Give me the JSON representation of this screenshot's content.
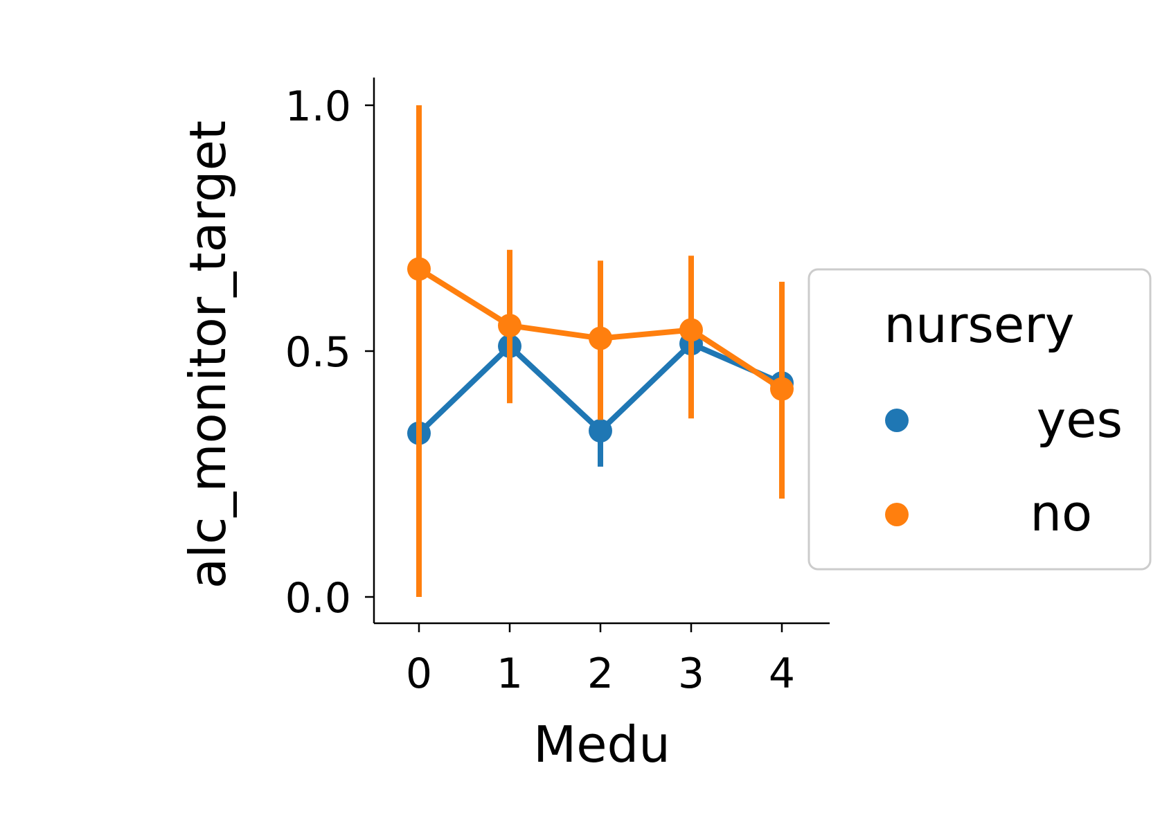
{
  "chart_data": {
    "type": "line",
    "title": "",
    "xlabel": "Medu",
    "ylabel": "alc_monitor_target",
    "categories": [
      "0",
      "1",
      "2",
      "3",
      "4"
    ],
    "ylim": [
      -0.05,
      1.05
    ],
    "yticks": [
      "0.0",
      "0.5",
      "1.0"
    ],
    "ytick_values": [
      0.0,
      0.5,
      1.0
    ],
    "grid": false,
    "legend": {
      "title": "nursery",
      "placement": "right, outside plot"
    },
    "series": [
      {
        "name": "yes",
        "color": "#1f77b4",
        "values": [
          0.333,
          0.51,
          0.338,
          0.515,
          0.435
        ],
        "ci_low": [
          null,
          0.44,
          0.265,
          0.45,
          0.39
        ],
        "ci_high": [
          null,
          0.58,
          0.41,
          0.58,
          0.48
        ]
      },
      {
        "name": "no",
        "color": "#ff7f0e",
        "values": [
          0.667,
          0.552,
          0.526,
          0.543,
          0.423
        ],
        "ci_low": [
          0.0,
          0.394,
          0.36,
          0.363,
          0.2
        ],
        "ci_high": [
          1.0,
          0.706,
          0.684,
          0.694,
          0.641
        ]
      }
    ]
  }
}
